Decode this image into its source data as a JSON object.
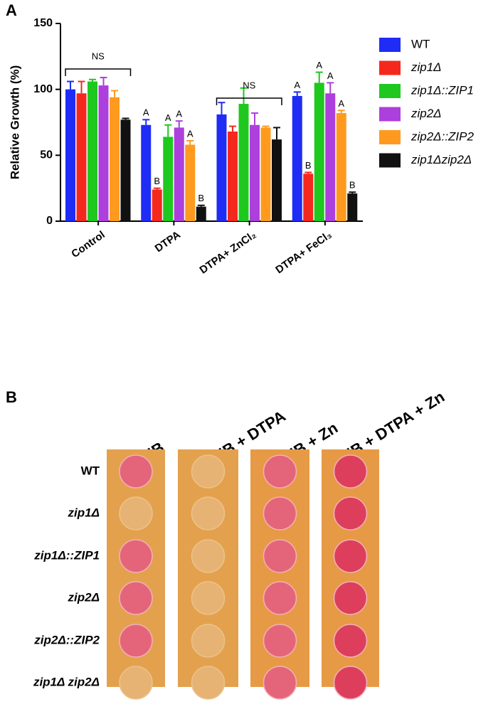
{
  "panel_labels": [
    "A",
    "B"
  ],
  "chart_data": {
    "type": "bar",
    "y_label": "Relative Growth (%)",
    "categories": [
      "Control",
      "DTPA",
      "DTPA+ ZnCl₂",
      "DTPA+ FeCl₃"
    ],
    "ylim": [
      0,
      150
    ],
    "yticks": [
      0,
      50,
      100,
      150
    ],
    "annotations": [
      "NS",
      "NS"
    ],
    "series": [
      {
        "name": "WT",
        "color": "#1f2cf5",
        "values": [
          100,
          73,
          81,
          95
        ],
        "errors": [
          6,
          4,
          9,
          3
        ],
        "significance": [
          null,
          "A",
          null,
          "A"
        ]
      },
      {
        "name": "zip1Δ",
        "color": "#f5281e",
        "values": [
          97,
          24,
          68,
          36
        ],
        "errors": [
          9,
          1,
          4,
          1
        ],
        "significance": [
          null,
          "B",
          null,
          "B"
        ]
      },
      {
        "name": "zip1Δ::ZIP1",
        "color": "#1ec81e",
        "values": [
          106,
          64,
          89,
          105
        ],
        "errors": [
          1.5,
          9,
          12,
          8
        ],
        "significance": [
          null,
          "A",
          null,
          "A"
        ]
      },
      {
        "name": "zip2Δ",
        "color": "#ad3fdc",
        "values": [
          103,
          71,
          73,
          97
        ],
        "errors": [
          6,
          5,
          9,
          8
        ],
        "significance": [
          null,
          "A",
          null,
          "A"
        ]
      },
      {
        "name": "zip2Δ::ZIP2",
        "color": "#ff9a1e",
        "values": [
          94,
          58,
          71,
          82
        ],
        "errors": [
          5,
          3,
          1,
          2
        ],
        "significance": [
          null,
          "A",
          null,
          "A"
        ]
      },
      {
        "name": "zip1Δzip2Δ",
        "color": "#111111",
        "values": [
          77,
          11,
          62,
          21
        ],
        "errors": [
          1,
          1,
          9,
          1
        ],
        "significance": [
          null,
          "B",
          null,
          "B"
        ]
      }
    ]
  },
  "plate": {
    "conditions": [
      "YNB",
      "YNB +  DTPA",
      "YNB + Zn",
      "YNB + DTPA + Zn"
    ],
    "strains": [
      "WT",
      "zip1Δ",
      "zip1Δ::ZIP1",
      "zip2Δ",
      "zip2Δ::ZIP2",
      "zip1Δ zip2Δ"
    ]
  }
}
